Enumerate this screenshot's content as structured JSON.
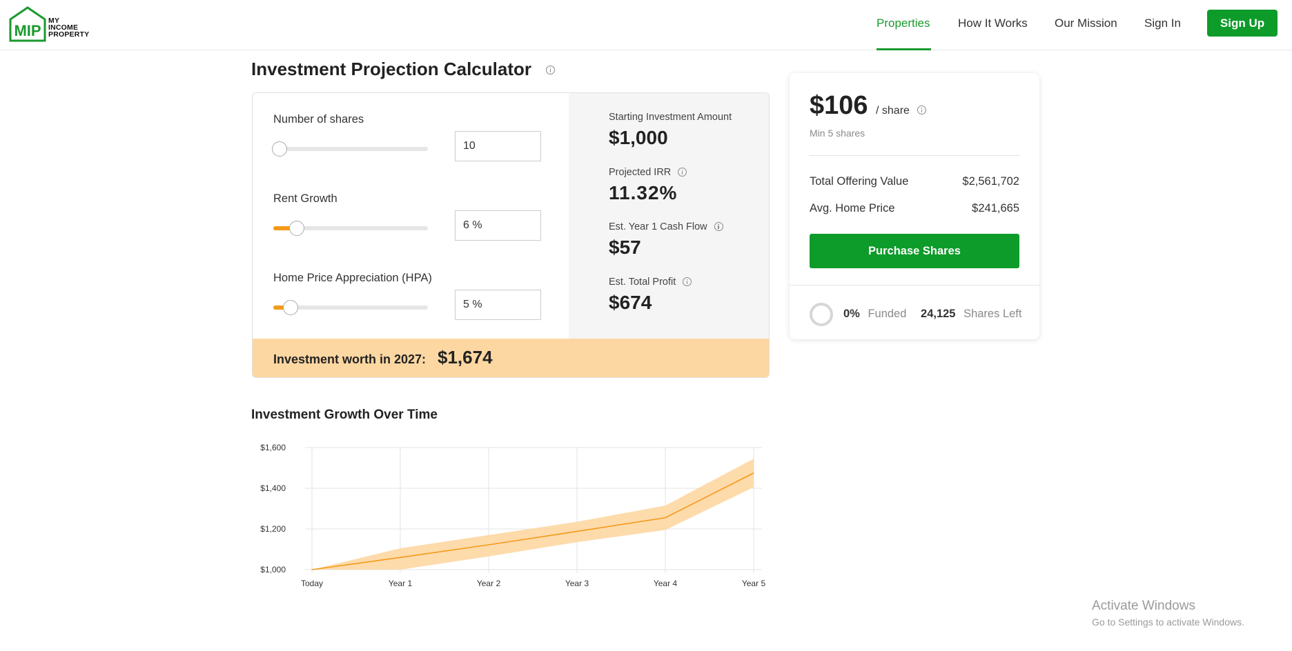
{
  "header": {
    "logo": {
      "mark": "MIP",
      "line1": "MY",
      "line2": "INCOME",
      "line3": "PROPERTY"
    },
    "nav": [
      {
        "label": "Properties",
        "active": true
      },
      {
        "label": "How It Works",
        "active": false
      },
      {
        "label": "Our Mission",
        "active": false
      },
      {
        "label": "Sign In",
        "active": false
      }
    ],
    "signup_label": "Sign Up",
    "accent_color": "#0d9b2a"
  },
  "calculator": {
    "title": "Investment Projection Calculator",
    "fields": [
      {
        "label": "Number of shares",
        "value": "10",
        "slider_fraction": 0.0
      },
      {
        "label": "Rent Growth",
        "value": "6 %",
        "slider_fraction": 0.15
      },
      {
        "label": "Home Price Appreciation (HPA)",
        "value": "5 %",
        "slider_fraction": 0.11
      }
    ],
    "stats": [
      {
        "label": "Starting Investment Amount",
        "value": "$1,000",
        "info": false
      },
      {
        "label": "Projected IRR",
        "value": "11.32%",
        "info": true
      },
      {
        "label": "Est. Year 1 Cash Flow",
        "value": "$57",
        "info": true
      },
      {
        "label": "Est. Total Profit",
        "value": "$674",
        "info": true
      }
    ],
    "worth_label": "Investment worth in 2027:",
    "worth_value": "$1,674"
  },
  "chart_title": "Investment Growth Over Time",
  "chart_data": {
    "type": "area",
    "title": "Investment Growth Over Time",
    "categories": [
      "Today",
      "Year 1",
      "Year 2",
      "Year 3",
      "Year 4",
      "Year 5"
    ],
    "ylim": [
      1000,
      1600
    ],
    "yticks": [
      1000,
      1200,
      1400,
      1600
    ],
    "ytick_labels": [
      "$1,000",
      "$1,200",
      "$1,400",
      "$1,600"
    ],
    "series": [
      {
        "values": [
          1000,
          1060,
          1122,
          1188,
          1255,
          1475
        ]
      }
    ],
    "band_upper": [
      1000,
      1105,
      1170,
      1235,
      1315,
      1545
    ],
    "band_lower": [
      1000,
      1000,
      1065,
      1135,
      1195,
      1405
    ],
    "grid": true,
    "colors": {
      "line": "#f39a1a",
      "band": "#fdd7a2"
    }
  },
  "side": {
    "price": "$106",
    "per_share": "/ share",
    "min_shares": "Min 5 shares",
    "rows": [
      {
        "label": "Total Offering Value",
        "value": "$2,561,702"
      },
      {
        "label": "Avg. Home Price",
        "value": "$241,665"
      }
    ],
    "purchase_label": "Purchase Shares",
    "funded_pct": "0%",
    "funded_label": "Funded",
    "shares_left": "24,125",
    "shares_left_label": "Shares Left"
  },
  "watermark": {
    "line1": "Activate Windows",
    "line2": "Go to Settings to activate Windows."
  }
}
